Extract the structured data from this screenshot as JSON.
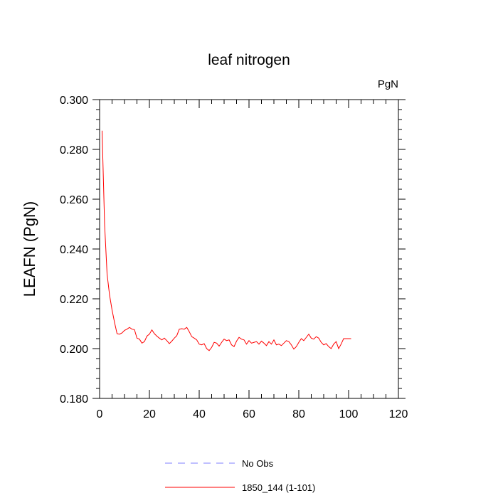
{
  "chart_data": {
    "type": "line",
    "title": "leaf nitrogen",
    "units_label": "PgN",
    "xlabel": "",
    "ylabel": "LEAFN  (PgN)",
    "xlim": [
      0,
      120
    ],
    "ylim": [
      0.18,
      0.3
    ],
    "x_ticks": [
      "0",
      "20",
      "40",
      "60",
      "80",
      "100",
      "120"
    ],
    "y_ticks": [
      "0.180",
      "0.200",
      "0.220",
      "0.240",
      "0.260",
      "0.280",
      "0.300"
    ],
    "grid": false,
    "legend": {
      "placement": "bottom",
      "entries": [
        {
          "label": "No Obs",
          "color": "#8080ff",
          "style": "dashed"
        },
        {
          "label": "1850_144 (1-101)",
          "color": "#ff0000",
          "style": "solid"
        }
      ]
    },
    "series": [
      {
        "name": "1850_144 (1-101)",
        "color": "#ff0000",
        "x": [
          1,
          2,
          3,
          4,
          5,
          6,
          7,
          8,
          9,
          10,
          11,
          12,
          13,
          14,
          15,
          16,
          17,
          18,
          19,
          20,
          21,
          22,
          23,
          24,
          25,
          26,
          27,
          28,
          29,
          30,
          31,
          32,
          33,
          34,
          35,
          36,
          37,
          38,
          39,
          40,
          41,
          42,
          43,
          44,
          45,
          46,
          47,
          48,
          49,
          50,
          51,
          52,
          53,
          54,
          55,
          56,
          57,
          58,
          59,
          60,
          61,
          62,
          63,
          64,
          65,
          66,
          67,
          68,
          69,
          70,
          71,
          72,
          73,
          74,
          75,
          76,
          77,
          78,
          79,
          80,
          81,
          82,
          83,
          84,
          85,
          86,
          87,
          88,
          89,
          90,
          91,
          92,
          93,
          94,
          95,
          96,
          97,
          98,
          99,
          100,
          101
        ],
        "y": [
          0.2875,
          0.25,
          0.23,
          0.2215,
          0.2155,
          0.2105,
          0.206,
          0.2058,
          0.2063,
          0.2073,
          0.2078,
          0.2085,
          0.2078,
          0.2076,
          0.2042,
          0.2038,
          0.2022,
          0.2028,
          0.205,
          0.2058,
          0.2075,
          0.206,
          0.205,
          0.2042,
          0.2035,
          0.2042,
          0.2032,
          0.202,
          0.203,
          0.2042,
          0.2052,
          0.2078,
          0.208,
          0.2078,
          0.2085,
          0.2068,
          0.2048,
          0.2042,
          0.2035,
          0.2018,
          0.2015,
          0.202,
          0.2,
          0.1992,
          0.2005,
          0.2025,
          0.2022,
          0.201,
          0.2025,
          0.2038,
          0.2032,
          0.2035,
          0.2015,
          0.2008,
          0.203,
          0.2045,
          0.2038,
          0.2035,
          0.2018,
          0.2032,
          0.2022,
          0.2025,
          0.2028,
          0.2018,
          0.203,
          0.2022,
          0.2012,
          0.2028,
          0.2018,
          0.2035,
          0.2015,
          0.2018,
          0.2012,
          0.2022,
          0.2032,
          0.2028,
          0.2015,
          0.1998,
          0.2008,
          0.2025,
          0.204,
          0.2032,
          0.2045,
          0.2058,
          0.2042,
          0.2038,
          0.2048,
          0.2042,
          0.2025,
          0.2015,
          0.202,
          0.2008,
          0.2,
          0.2018,
          0.2028,
          0.2,
          0.2018,
          0.204,
          0.204,
          0.204,
          0.204
        ]
      }
    ]
  }
}
